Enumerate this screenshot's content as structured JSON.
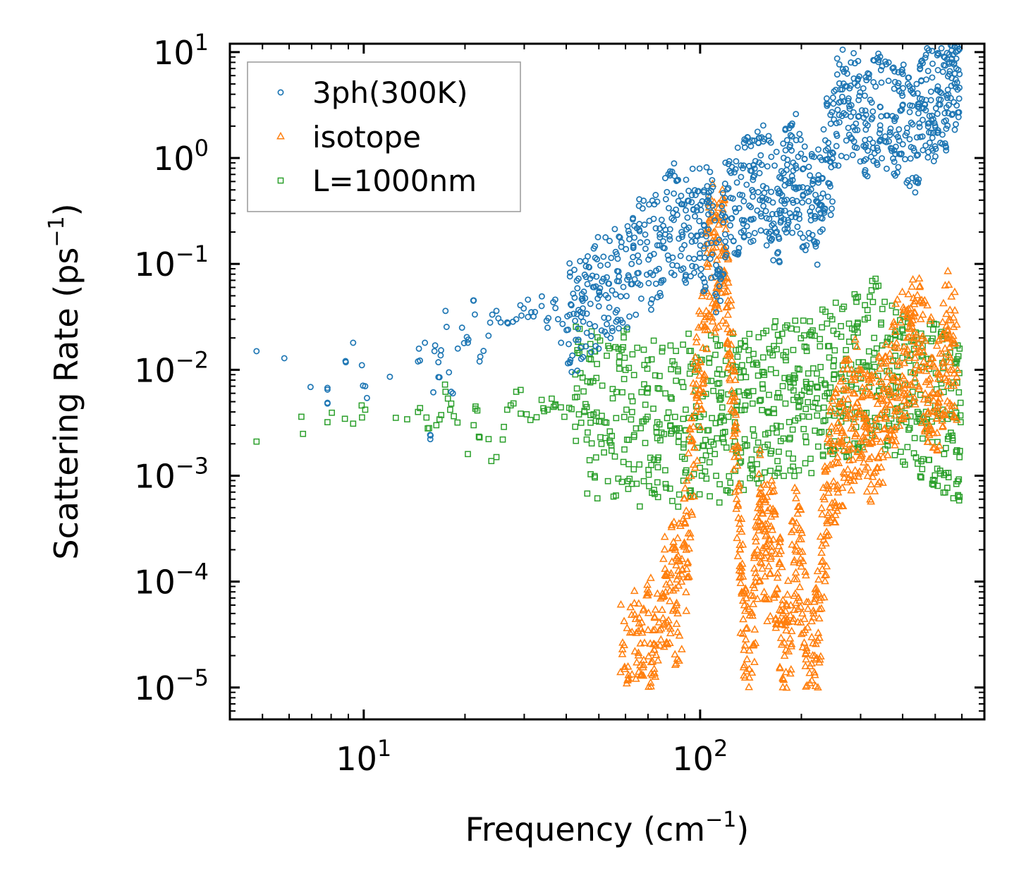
{
  "chart_data": {
    "type": "scatter",
    "title": "",
    "xlabel": "Frequency (cm",
    "xlabel_sup": "−1",
    "xlabel_tail": ")",
    "ylabel": "Scattering Rate (ps",
    "ylabel_sup": "−1",
    "ylabel_tail": ")",
    "xscale": "log",
    "yscale": "log",
    "xlim": [
      4.0,
      700.0
    ],
    "ylim": [
      5e-06,
      12.0
    ],
    "legend_position": "upper-left",
    "x_ticks": [
      {
        "value": 10,
        "base": "10",
        "exp": "1"
      },
      {
        "value": 100,
        "base": "10",
        "exp": "2"
      }
    ],
    "y_ticks": [
      {
        "value": 10,
        "base": "10",
        "exp": "1"
      },
      {
        "value": 1,
        "base": "10",
        "exp": "0"
      },
      {
        "value": 0.1,
        "base": "10",
        "exp": "−1"
      },
      {
        "value": 0.01,
        "base": "10",
        "exp": "−2"
      },
      {
        "value": 0.001,
        "base": "10",
        "exp": "−3"
      },
      {
        "value": 0.0001,
        "base": "10",
        "exp": "−4"
      },
      {
        "value": 1e-05,
        "base": "10",
        "exp": "−5"
      }
    ],
    "series": [
      {
        "name": "3ph(300K)",
        "color": "#1f77b4",
        "marker": "circle",
        "x": [
          4.8,
          7.8,
          7.8,
          9.3,
          10.1,
          14.5,
          15.2,
          15.8,
          16.3,
          16.8,
          17.5,
          18.2,
          19.6,
          20.4,
          21.2,
          22.1,
          23.5,
          24.8,
          26.7,
          28.4,
          29.9,
          31.5,
          33.8,
          35.2,
          37.1,
          38.6,
          40.3,
          42.5,
          44.8,
          47.2,
          50.1,
          53.6,
          57.2,
          61.4,
          65.3,
          70.2,
          74.6,
          78.9,
          83.5,
          88.4,
          92.6,
          97.8,
          102.5,
          106.3,
          112.4,
          118.6,
          124.3,
          131.2,
          137.5,
          143.8,
          150.2,
          157.4,
          164.5,
          172.3,
          178.6,
          185.2,
          192.4,
          201.3,
          210.6,
          219.8,
          228.4,
          236.5,
          245.3,
          256.4,
          268.2,
          281.5,
          295.3,
          310.4,
          326.2,
          342.6,
          360.5,
          378.4,
          395.2,
          412.6,
          430.5,
          448.3,
          466.2,
          485.6,
          502.4,
          521.3,
          540.6,
          558.2,
          575.4,
          590.3
        ],
        "y": [
          0.015,
          0.0065,
          0.0048,
          0.018,
          0.007,
          0.012,
          0.018,
          0.0024,
          0.017,
          0.0085,
          0.036,
          0.0062,
          0.025,
          0.018,
          0.045,
          0.012,
          0.021,
          0.036,
          0.028,
          0.03,
          0.038,
          0.035,
          0.04,
          0.025,
          0.046,
          0.018,
          0.032,
          0.029,
          0.038,
          0.042,
          0.055,
          0.065,
          0.085,
          0.075,
          0.12,
          0.11,
          0.15,
          0.21,
          0.26,
          0.18,
          0.22,
          0.32,
          0.14,
          0.38,
          0.08,
          0.28,
          0.27,
          0.45,
          0.56,
          0.48,
          0.72,
          0.52,
          0.38,
          0.32,
          0.62,
          0.58,
          0.85,
          0.38,
          0.48,
          0.28,
          0.42,
          1.18,
          0.82,
          2.85,
          3.42,
          3.15,
          2.45,
          2.12,
          2.75,
          3.05,
          2.52,
          2.24,
          2.8,
          1.92,
          1.24,
          2.12,
          3.18,
          3.52,
          2.95,
          4.1,
          3.9,
          4.8,
          5.5,
          6.2
        ],
        "spread": 1.8
      },
      {
        "name": "isotope",
        "color": "#ff7f0e",
        "marker": "triangle",
        "x": [
          58,
          61,
          64,
          67,
          70,
          73,
          76,
          79,
          82,
          85,
          88,
          91,
          94,
          97,
          100,
          103,
          106,
          109,
          112,
          115,
          118,
          121,
          124,
          127,
          130,
          133,
          136,
          140,
          144,
          148,
          152,
          156,
          160,
          165,
          170,
          175,
          180,
          186,
          192,
          198,
          205,
          212,
          219,
          226,
          233,
          240,
          248,
          256,
          264,
          272,
          281,
          290,
          300,
          310,
          320,
          331,
          342,
          354,
          366,
          378,
          391,
          404,
          418,
          432,
          447,
          462,
          478,
          494,
          511,
          528,
          546,
          564,
          582
        ],
        "y": [
          1.4e-05,
          1.2e-05,
          2.2e-05,
          1.3e-05,
          3.5e-05,
          1.5e-05,
          2.5e-05,
          8e-05,
          0.00012,
          6e-05,
          0.0001,
          0.0002,
          0.001,
          0.004,
          0.012,
          0.03,
          0.1,
          0.13,
          0.055,
          0.12,
          0.14,
          0.045,
          0.01,
          0.0025,
          0.0004,
          8e-05,
          2.5e-05,
          1.5e-05,
          2.5e-05,
          0.0002,
          0.0006,
          0.0003,
          0.00014,
          0.00025,
          0.00012,
          4e-05,
          1.4e-05,
          6e-05,
          0.0002,
          0.00015,
          3.5e-05,
          1.1e-05,
          2e-05,
          4.5e-05,
          0.00025,
          0.0008,
          0.0013,
          0.0015,
          0.002,
          0.0035,
          0.0028,
          0.0045,
          0.0038,
          0.0022,
          0.002,
          0.003,
          0.0035,
          0.0042,
          0.006,
          0.0085,
          0.012,
          0.015,
          0.013,
          0.02,
          0.018,
          0.012,
          0.008,
          0.006,
          0.005,
          0.012,
          0.02,
          0.018,
          0.01
        ],
        "spread": 2.2
      },
      {
        "name": "L=1000nm",
        "color": "#2ca02c",
        "marker": "square",
        "x": [
          4.8,
          7.8,
          9.3,
          10.1,
          14.5,
          15.5,
          16.8,
          17.5,
          18.2,
          20.4,
          21.5,
          22.1,
          24.8,
          26.7,
          28.4,
          30.5,
          33.8,
          35.2,
          37.1,
          39.5,
          42.5,
          45.3,
          48.2,
          52.1,
          56.3,
          60.4,
          64.5,
          69.8,
          74.6,
          79.8,
          85.2,
          90.6,
          96.2,
          102.5,
          108.4,
          114.6,
          121.3,
          128.4,
          135.6,
          143.2,
          151.5,
          160.2,
          169.6,
          179.4,
          189.5,
          200.3,
          211.6,
          223.5,
          236.2,
          249.6,
          263.4,
          278.3,
          293.6,
          310.2,
          327.6,
          345.8,
          365.2,
          385.4,
          406.3,
          428.5,
          451.6,
          475.4,
          500.2,
          526.3,
          552.4,
          578.6,
          595.2
        ],
        "y": [
          0.0021,
          0.0032,
          0.0031,
          0.0042,
          0.004,
          0.0028,
          0.0034,
          0.0062,
          0.0048,
          0.0016,
          0.0045,
          0.0023,
          0.0015,
          0.0042,
          0.0062,
          0.0038,
          0.0052,
          0.0042,
          0.0046,
          0.0036,
          0.0055,
          0.0041,
          0.0038,
          0.0032,
          0.0035,
          0.0042,
          0.0028,
          0.0036,
          0.0032,
          0.0035,
          0.0028,
          0.0042,
          0.0035,
          0.0038,
          0.0035,
          0.0032,
          0.0036,
          0.0046,
          0.0042,
          0.0048,
          0.0052,
          0.0058,
          0.0055,
          0.0048,
          0.0052,
          0.0058,
          0.0062,
          0.0068,
          0.0072,
          0.0082,
          0.0085,
          0.0092,
          0.0098,
          0.011,
          0.0125,
          0.0115,
          0.0098,
          0.0085,
          0.0072,
          0.0062,
          0.0058,
          0.0052,
          0.0046,
          0.0042,
          0.0038,
          0.0035,
          0.0032
        ],
        "spread": 2.6
      }
    ]
  }
}
